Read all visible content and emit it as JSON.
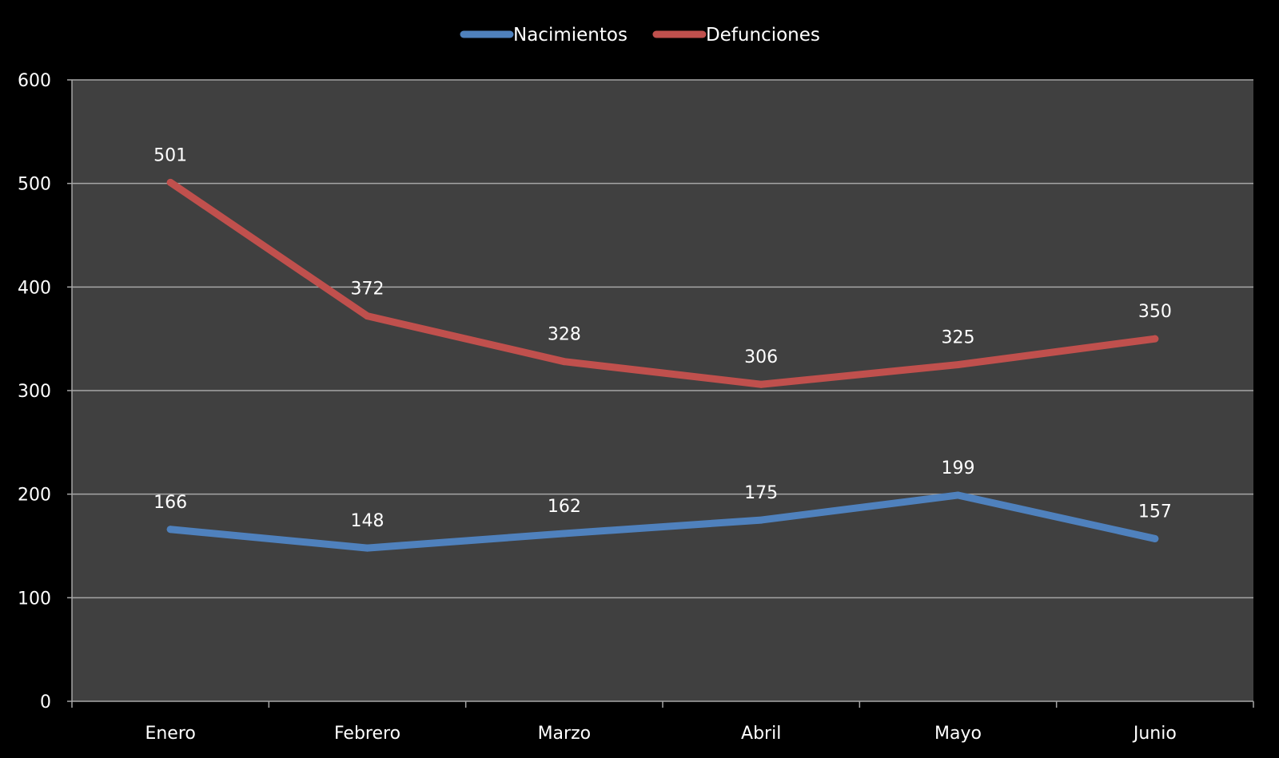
{
  "chart_data": {
    "type": "line",
    "title": "",
    "xlabel": "",
    "ylabel": "",
    "categories": [
      "Enero",
      "Febrero",
      "Marzo",
      "Abril",
      "Mayo",
      "Junio"
    ],
    "ylim": [
      0,
      600
    ],
    "yticks": [
      0,
      100,
      200,
      300,
      400,
      500,
      600
    ],
    "grid": true,
    "legend_position": "top-center",
    "series": [
      {
        "name": "Nacimientos",
        "color": "#4f81bd",
        "values": [
          166,
          148,
          162,
          175,
          199,
          157
        ]
      },
      {
        "name": "Defunciones",
        "color": "#c0504d",
        "values": [
          501,
          372,
          328,
          306,
          325,
          350
        ]
      }
    ],
    "colors": {
      "background": "#000000",
      "plot_area": "#404040",
      "gridline": "#a6a6a6",
      "text": "#ffffff"
    }
  }
}
